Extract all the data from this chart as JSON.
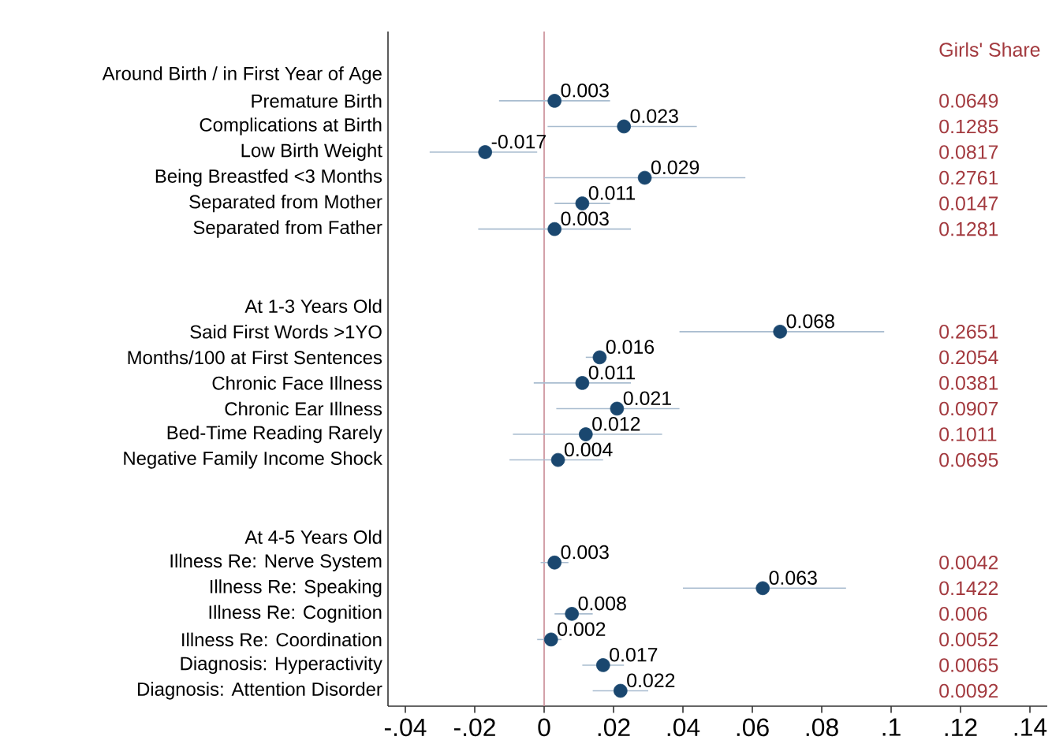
{
  "chart_data": {
    "type": "scatter",
    "orientation": "horizontal",
    "marker": "circle",
    "data_labels": true,
    "color": "#1a476f",
    "categories": [
      "Around Birth / in First Year of Age",
      "Premature Birth",
      "Complications at Birth",
      "Low Birth Weight",
      "Being Breastfed <3 Months",
      "Separated from Mother",
      "Separated from Father",
      null,
      null,
      "At 1-3 Years Old",
      "Said First Words >1YO",
      "Months/100 at First Sentences",
      "Chronic Face Illness",
      "Chronic Ear Illness",
      "Bed-Time Reading Rarely",
      "Negative Family Income Shock",
      null,
      null,
      "At 4-5 Years Old",
      "Illness Re: Nerve System",
      "Illness Re: Speaking",
      "Illness Re: Cognition",
      "Illness Re: Coordination",
      "Diagnosis: Hyperactivity",
      "Diagnosis: Attention Disorder"
    ],
    "values": [
      null,
      0.003,
      0.023,
      -0.017,
      0.029,
      0.011,
      0.003,
      null,
      null,
      null,
      0.068,
      0.016,
      0.011,
      0.021,
      0.012,
      0.004,
      null,
      null,
      null,
      0.003,
      0.063,
      0.008,
      0.002,
      0.017,
      0.022
    ],
    "errors": [
      null,
      [
        -0.013,
        0.019
      ],
      [
        0.001,
        0.044
      ],
      [
        -0.033,
        -0.002
      ],
      [
        0.0,
        0.058
      ],
      [
        0.003,
        0.019
      ],
      [
        -0.019,
        0.025
      ],
      null,
      null,
      null,
      [
        0.039,
        0.098
      ],
      [
        0.012,
        0.018
      ],
      [
        -0.003,
        0.025
      ],
      [
        0.0035,
        0.039
      ],
      [
        -0.009,
        0.034
      ],
      [
        -0.01,
        0.017
      ],
      null,
      null,
      null,
      [
        -0.001,
        0.007
      ],
      [
        0.04,
        0.087
      ],
      [
        0.003,
        0.014
      ],
      [
        -0.002,
        0.005
      ],
      [
        0.011,
        0.023
      ],
      [
        0.014,
        0.03
      ]
    ],
    "xlim": [
      -0.045,
      0.145
    ],
    "xticks": [
      {
        "value": -0.04,
        "label": "-.04"
      },
      {
        "value": -0.02,
        "label": "-.02"
      },
      0,
      {
        "value": 0.02,
        "label": ".02"
      },
      {
        "value": 0.04,
        "label": ".04"
      },
      {
        "value": 0.06,
        "label": ".06"
      },
      {
        "value": 0.08,
        "label": ".08"
      },
      {
        "value": 0.1,
        "label": ".1"
      },
      {
        "value": 0.12,
        "label": ".12"
      },
      {
        "value": 0.14,
        "label": ".14"
      }
    ],
    "ref_lines": [
      {
        "axis": "x",
        "value": 0,
        "color": "#c88a94"
      }
    ],
    "annotations": [
      "Girls' Share",
      "0.0649",
      "0.1285",
      "0.0817",
      "0.2761",
      "0.0147",
      "0.1281",
      "0.2651",
      "0.2054",
      "0.0381",
      "0.0907",
      "0.1011",
      "0.0695",
      "0.0042",
      "0.1422",
      "0.006",
      "0.0052",
      "0.0065",
      "0.0092"
    ]
  }
}
